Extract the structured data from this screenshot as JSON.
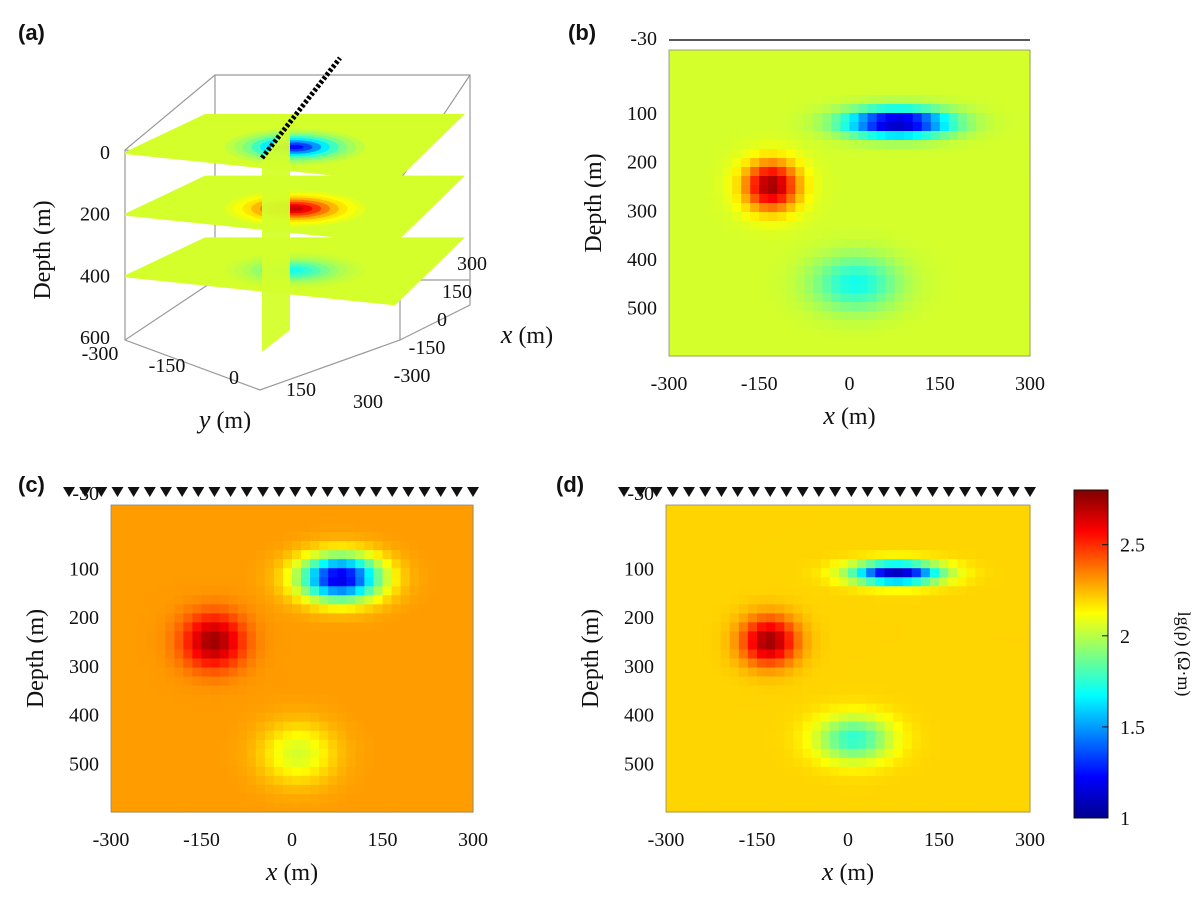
{
  "panel_labels": [
    "(a)",
    "(b)",
    "(c)",
    "(d)"
  ],
  "chart_data": [
    {
      "panel": "(a)",
      "type": "heatmap",
      "view": "3d-slices",
      "zlabel": "Depth (m)",
      "xlabel_italic": "x",
      "xlabel_unit": " (m)",
      "ylabel_italic": "y",
      "ylabel_unit": " (m)",
      "depth_ticks": [
        0,
        200,
        400,
        600
      ],
      "x_ticks": [
        300,
        150,
        0,
        -150,
        -300
      ],
      "y_ticks": [
        -300,
        -150,
        0,
        150,
        300
      ],
      "slice_depths": [
        0,
        200,
        400
      ],
      "anomalies": [
        {
          "depth": 0,
          "lgrho": 1.2
        },
        {
          "depth": 200,
          "lgrho": 2.7
        },
        {
          "depth": 400,
          "lgrho": 1.7
        }
      ]
    },
    {
      "panel": "(b)",
      "type": "heatmap",
      "ylabel": "Depth (m)",
      "xlabel_italic": "x",
      "xlabel_unit": " (m)",
      "xlim": [
        -300,
        300
      ],
      "ylim": [
        -30,
        600
      ],
      "x_ticks": [
        -300,
        -150,
        0,
        150,
        300
      ],
      "y_ticks": [
        -30,
        100,
        200,
        300,
        400,
        500
      ],
      "background": 2.05,
      "anomalies": [
        {
          "x": 80,
          "z": 120,
          "sx": 85,
          "sz": 28,
          "value": 1.05
        },
        {
          "x": -130,
          "z": 250,
          "sx": 45,
          "sz": 50,
          "value": 2.75
        },
        {
          "x": 10,
          "z": 450,
          "sx": 70,
          "sz": 55,
          "value": 1.7
        }
      ],
      "stations": false
    },
    {
      "panel": "(c)",
      "type": "heatmap",
      "ylabel": "Depth (m)",
      "xlabel_italic": "x",
      "xlabel_unit": " (m)",
      "xlim": [
        -300,
        300
      ],
      "ylim": [
        -30,
        600
      ],
      "x_ticks": [
        -300,
        -150,
        0,
        150,
        300
      ],
      "y_ticks": [
        -30,
        100,
        200,
        300,
        400,
        500
      ],
      "background": 2.3,
      "anomalies": [
        {
          "x": 80,
          "z": 120,
          "sx": 65,
          "sz": 45,
          "value": 1.15
        },
        {
          "x": -130,
          "z": 250,
          "sx": 50,
          "sz": 55,
          "value": 2.75
        },
        {
          "x": 10,
          "z": 480,
          "sx": 60,
          "sz": 60,
          "value": 2.05
        }
      ],
      "stations": true,
      "station_count": 26
    },
    {
      "panel": "(d)",
      "type": "heatmap",
      "ylabel": "Depth (m)",
      "xlabel_italic": "x",
      "xlabel_unit": " (m)",
      "xlim": [
        -300,
        300
      ],
      "ylim": [
        -30,
        600
      ],
      "x_ticks": [
        -300,
        -150,
        0,
        150,
        300
      ],
      "y_ticks": [
        -30,
        100,
        200,
        300,
        400,
        500
      ],
      "background": 2.2,
      "anomalies": [
        {
          "x": 80,
          "z": 110,
          "sx": 70,
          "sz": 22,
          "value": 1.1
        },
        {
          "x": -130,
          "z": 250,
          "sx": 45,
          "sz": 48,
          "value": 2.75
        },
        {
          "x": 10,
          "z": 450,
          "sx": 60,
          "sz": 45,
          "value": 1.75
        }
      ],
      "stations": true,
      "station_count": 26
    }
  ],
  "colorbar": {
    "label": "lg(ρ) (Ω·m)",
    "range": [
      1,
      2.8
    ],
    "ticks": [
      "1",
      "1.5",
      "2",
      "2.5"
    ],
    "colormap": "jet"
  }
}
